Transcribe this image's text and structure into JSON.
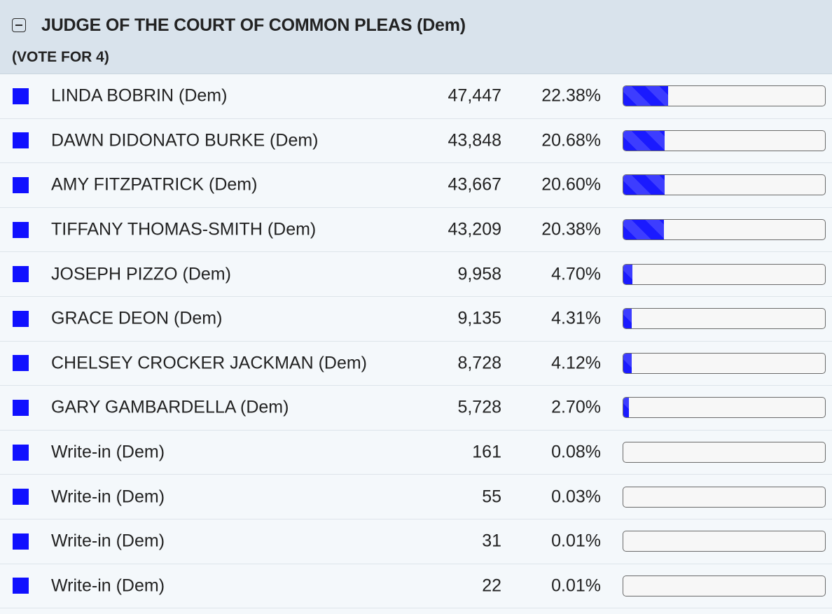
{
  "contest": {
    "title": "JUDGE OF THE COURT OF COMMON PLEAS (Dem)",
    "subtitle": "(VOTE FOR 4)",
    "bar_color": "#1010ff",
    "candidates": [
      {
        "name": "LINDA BOBRIN (Dem)",
        "votes": "47,447",
        "percent": "22.38%",
        "share": 22.38
      },
      {
        "name": "DAWN DIDONATO BURKE (Dem)",
        "votes": "43,848",
        "percent": "20.68%",
        "share": 20.68
      },
      {
        "name": "AMY FITZPATRICK (Dem)",
        "votes": "43,667",
        "percent": "20.60%",
        "share": 20.6
      },
      {
        "name": "TIFFANY THOMAS-SMITH (Dem)",
        "votes": "43,209",
        "percent": "20.38%",
        "share": 20.38
      },
      {
        "name": "JOSEPH PIZZO (Dem)",
        "votes": "9,958",
        "percent": "4.70%",
        "share": 4.7
      },
      {
        "name": "GRACE DEON (Dem)",
        "votes": "9,135",
        "percent": "4.31%",
        "share": 4.31
      },
      {
        "name": "CHELSEY CROCKER JACKMAN (Dem)",
        "votes": "8,728",
        "percent": "4.12%",
        "share": 4.12
      },
      {
        "name": "GARY GAMBARDELLA (Dem)",
        "votes": "5,728",
        "percent": "2.70%",
        "share": 2.7
      },
      {
        "name": "Write-in (Dem)",
        "votes": "161",
        "percent": "0.08%",
        "share": 0.08
      },
      {
        "name": "Write-in (Dem)",
        "votes": "55",
        "percent": "0.03%",
        "share": 0.03
      },
      {
        "name": "Write-in (Dem)",
        "votes": "31",
        "percent": "0.01%",
        "share": 0.01
      },
      {
        "name": "Write-in (Dem)",
        "votes": "22",
        "percent": "0.01%",
        "share": 0.01
      }
    ]
  }
}
